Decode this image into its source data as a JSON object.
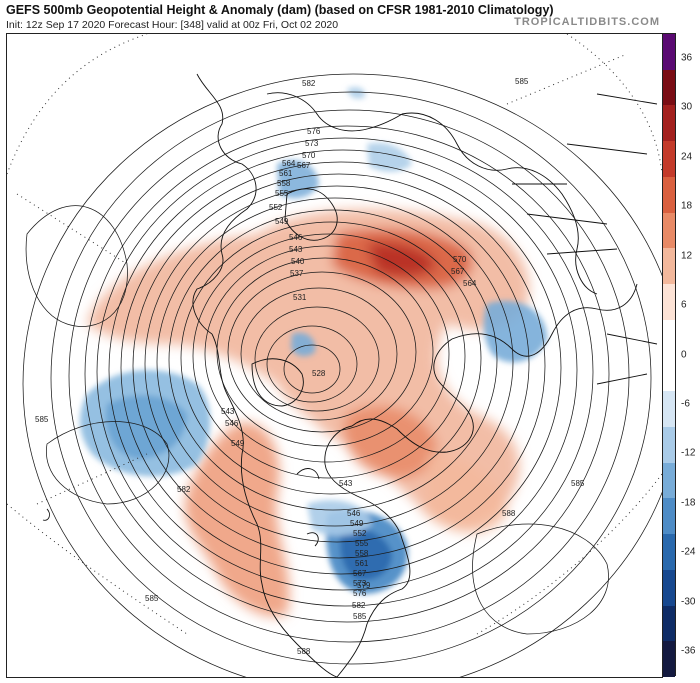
{
  "header": {
    "title": "GEFS 500mb Geopotential Height & Anomaly (dam) (based on CFSR 1981-2010 Climatology)",
    "subtitle": "Init: 12z Sep 17 2020   Forecast Hour: [348]   valid at 00z Fri, Oct 02 2020",
    "brand": "TROPICALTIDBITS.COM"
  },
  "colorbar": {
    "ticks": [
      "36",
      "30",
      "24",
      "18",
      "12",
      "6",
      "0",
      "-6",
      "-12",
      "-18",
      "-24",
      "-30",
      "-36"
    ],
    "colors": [
      "#5a0a72",
      "#7a0d14",
      "#a3201e",
      "#c33a2a",
      "#d9603f",
      "#e88a66",
      "#f3b89c",
      "#fde3d6",
      "#ffffff",
      "#ffffff",
      "#d6e6f4",
      "#a9cbe8",
      "#78acd8",
      "#4e8cc6",
      "#2a69ad",
      "#17488f",
      "#0f2c66",
      "#141a40"
    ]
  },
  "map": {
    "contour_labels": [
      "582",
      "576",
      "573",
      "570",
      "567",
      "564",
      "561",
      "558",
      "555",
      "552",
      "549",
      "546",
      "543",
      "540",
      "537",
      "531",
      "528",
      "570",
      "567",
      "564",
      "585",
      "546",
      "543",
      "549",
      "582",
      "543",
      "546",
      "549",
      "552",
      "555",
      "558",
      "561",
      "567",
      "573",
      "576",
      "579",
      "582",
      "585",
      "588",
      "585",
      "585",
      "585",
      "588"
    ]
  }
}
